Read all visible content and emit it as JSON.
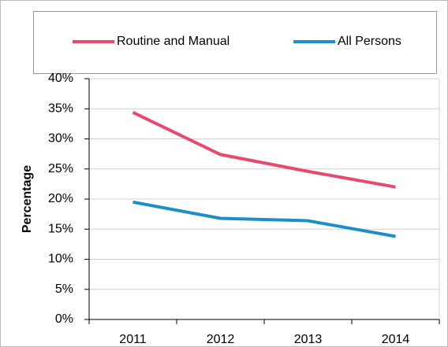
{
  "chart_data": {
    "type": "line",
    "y_label": "Percentage",
    "categories": [
      "2011",
      "2012",
      "2013",
      "2014"
    ],
    "series": [
      {
        "name": "Routine and Manual",
        "color": "#e8496c",
        "values": [
          34.4,
          27.4,
          24.6,
          22.0
        ]
      },
      {
        "name": "All Persons",
        "color": "#1a8fcb",
        "values": [
          19.5,
          16.8,
          16.4,
          13.8
        ]
      }
    ],
    "ylim": [
      0,
      40
    ],
    "yticks": [
      {
        "value": 0,
        "label": "0%"
      },
      {
        "value": 5,
        "label": "5%"
      },
      {
        "value": 10,
        "label": "10%"
      },
      {
        "value": 15,
        "label": "15%"
      },
      {
        "value": 20,
        "label": "20%"
      },
      {
        "value": 25,
        "label": "25%"
      },
      {
        "value": 30,
        "label": "30%"
      },
      {
        "value": 35,
        "label": "35%"
      },
      {
        "value": 40,
        "label": "40%"
      }
    ],
    "grid": true,
    "legend": "top"
  }
}
